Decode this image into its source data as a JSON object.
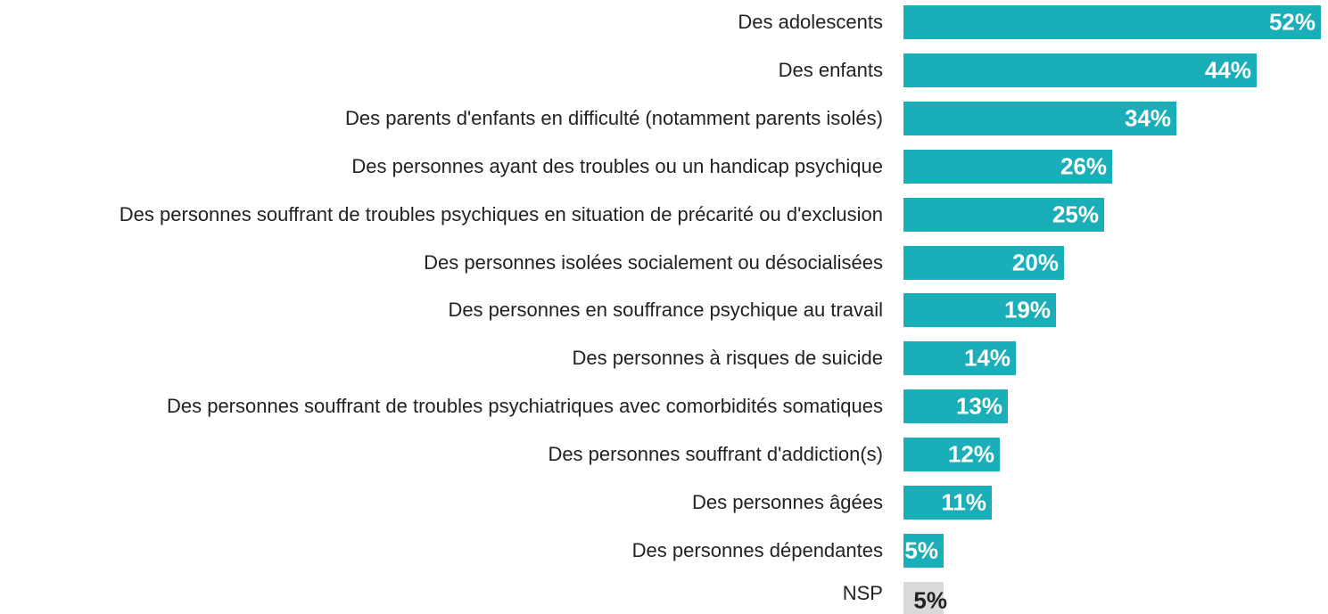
{
  "chart_data": {
    "type": "bar",
    "orientation": "horizontal",
    "categories": [
      "Des adolescents",
      "Des enfants",
      "Des parents d'enfants en difficulté (notamment parents isolés)",
      "Des personnes ayant des troubles ou un handicap psychique",
      "Des personnes souffrant de troubles psychiques en situation de précarité ou d'exclusion",
      "Des personnes isolées socialement ou désocialisées",
      "Des personnes en souffrance psychique au travail",
      "Des personnes à risques de suicide",
      "Des personnes souffrant de troubles psychiatriques avec comorbidités somatiques",
      "Des personnes souffrant d'addiction(s)",
      "Des personnes âgées",
      "Des personnes dépendantes",
      "NSP"
    ],
    "values": [
      52,
      44,
      34,
      26,
      25,
      20,
      19,
      14,
      13,
      12,
      11,
      5,
      5
    ],
    "value_labels": [
      "52%",
      "44%",
      "34%",
      "26%",
      "25%",
      "20%",
      "19%",
      "14%",
      "13%",
      "12%",
      "11%",
      "5%",
      "5%"
    ],
    "colors": [
      "#1aafb8",
      "#1aafb8",
      "#1aafb8",
      "#1aafb8",
      "#1aafb8",
      "#1aafb8",
      "#1aafb8",
      "#1aafb8",
      "#1aafb8",
      "#1aafb8",
      "#1aafb8",
      "#1aafb8",
      "#d9d9d9"
    ]
  }
}
